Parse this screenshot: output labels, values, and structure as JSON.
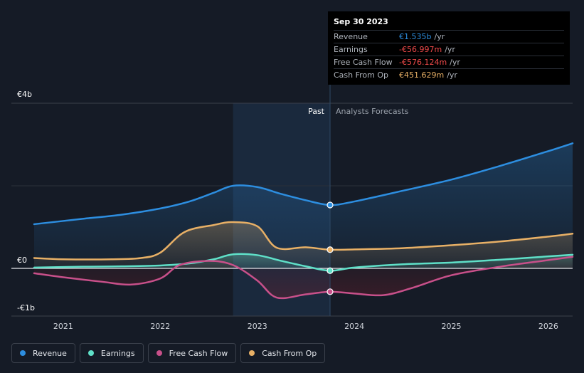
{
  "chart_data": {
    "type": "area",
    "title": "",
    "x_ticks": [
      "2021",
      "2022",
      "2023",
      "2024",
      "2025",
      "2026"
    ],
    "y_axis_labels": [
      "€4b",
      "€0",
      "-€1b"
    ],
    "ylim": [
      -1.0,
      4.0
    ],
    "xlim": [
      2020.7,
      2026.25
    ],
    "past_label": "Past",
    "forecast_label": "Analysts Forecasts",
    "highlight_range": [
      2022.75,
      2023.75
    ],
    "marker_x": 2023.75,
    "series": [
      {
        "name": "Revenue",
        "color": "#2d8ee0",
        "points": [
          [
            2020.7,
            1.07
          ],
          [
            2021.2,
            1.2
          ],
          [
            2021.6,
            1.3
          ],
          [
            2022.0,
            1.45
          ],
          [
            2022.3,
            1.62
          ],
          [
            2022.55,
            1.83
          ],
          [
            2022.75,
            2.0
          ],
          [
            2023.0,
            1.97
          ],
          [
            2023.25,
            1.8
          ],
          [
            2023.5,
            1.65
          ],
          [
            2023.75,
            1.535
          ],
          [
            2024.0,
            1.62
          ],
          [
            2024.5,
            1.88
          ],
          [
            2025.0,
            2.15
          ],
          [
            2025.5,
            2.48
          ],
          [
            2026.0,
            2.84
          ],
          [
            2026.25,
            3.03
          ]
        ]
      },
      {
        "name": "Earnings",
        "color": "#5fe0c8",
        "points": [
          [
            2020.7,
            0.02
          ],
          [
            2021.2,
            0.04
          ],
          [
            2021.6,
            0.05
          ],
          [
            2022.0,
            0.07
          ],
          [
            2022.3,
            0.12
          ],
          [
            2022.55,
            0.22
          ],
          [
            2022.75,
            0.34
          ],
          [
            2023.0,
            0.32
          ],
          [
            2023.25,
            0.18
          ],
          [
            2023.5,
            0.05
          ],
          [
            2023.75,
            -0.057
          ],
          [
            2024.0,
            0.02
          ],
          [
            2024.5,
            0.1
          ],
          [
            2025.0,
            0.14
          ],
          [
            2025.5,
            0.21
          ],
          [
            2026.0,
            0.29
          ],
          [
            2026.25,
            0.33
          ]
        ]
      },
      {
        "name": "Free Cash Flow",
        "color": "#c8508a",
        "points": [
          [
            2020.7,
            -0.12
          ],
          [
            2021.0,
            -0.22
          ],
          [
            2021.4,
            -0.33
          ],
          [
            2021.7,
            -0.4
          ],
          [
            2022.0,
            -0.25
          ],
          [
            2022.2,
            0.08
          ],
          [
            2022.5,
            0.18
          ],
          [
            2022.75,
            0.08
          ],
          [
            2023.0,
            -0.3
          ],
          [
            2023.2,
            -0.72
          ],
          [
            2023.5,
            -0.64
          ],
          [
            2023.75,
            -0.576
          ],
          [
            2024.0,
            -0.62
          ],
          [
            2024.3,
            -0.66
          ],
          [
            2024.6,
            -0.48
          ],
          [
            2025.0,
            -0.17
          ],
          [
            2025.5,
            0.04
          ],
          [
            2026.0,
            0.2
          ],
          [
            2026.25,
            0.28
          ]
        ]
      },
      {
        "name": "Cash From Op",
        "color": "#e8b066",
        "points": [
          [
            2020.7,
            0.25
          ],
          [
            2021.0,
            0.22
          ],
          [
            2021.5,
            0.22
          ],
          [
            2021.8,
            0.25
          ],
          [
            2022.0,
            0.38
          ],
          [
            2022.25,
            0.88
          ],
          [
            2022.55,
            1.05
          ],
          [
            2022.75,
            1.12
          ],
          [
            2023.0,
            1.02
          ],
          [
            2023.2,
            0.5
          ],
          [
            2023.5,
            0.51
          ],
          [
            2023.75,
            0.452
          ],
          [
            2024.0,
            0.46
          ],
          [
            2024.5,
            0.49
          ],
          [
            2025.0,
            0.56
          ],
          [
            2025.5,
            0.65
          ],
          [
            2026.0,
            0.77
          ],
          [
            2026.25,
            0.84
          ]
        ]
      }
    ]
  },
  "tooltip": {
    "date": "Sep 30 2023",
    "rows": [
      {
        "label": "Revenue",
        "value": "€1.535b",
        "unit": "/yr",
        "color": "#2d8ee0"
      },
      {
        "label": "Earnings",
        "value": "-€56.997m",
        "unit": "/yr",
        "color": "#ef4a4a"
      },
      {
        "label": "Free Cash Flow",
        "value": "-€576.124m",
        "unit": "/yr",
        "color": "#ef4a4a"
      },
      {
        "label": "Cash From Op",
        "value": "€451.629m",
        "unit": "/yr",
        "color": "#e8b066"
      }
    ]
  },
  "legend": [
    {
      "label": "Revenue",
      "color": "#2d8ee0"
    },
    {
      "label": "Earnings",
      "color": "#5fe0c8"
    },
    {
      "label": "Free Cash Flow",
      "color": "#c8508a"
    },
    {
      "label": "Cash From Op",
      "color": "#e8b066"
    }
  ]
}
